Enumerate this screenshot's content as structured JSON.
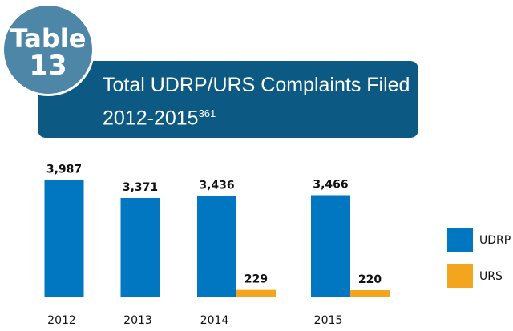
{
  "chart_data": {
    "type": "bar",
    "badge_label": "Table",
    "badge_number": 13,
    "title": "Total UDRP/URS Complaints Filed 2012-2015",
    "title_footnote": "361",
    "categories": [
      "2012",
      "2013",
      "2014",
      "2015"
    ],
    "series": [
      {
        "name": "UDRP",
        "color": "#0077c0",
        "values": [
          3987,
          3371,
          3436,
          3466
        ],
        "value_labels": [
          "3,987",
          "3,371",
          "3,436",
          "3,466"
        ]
      },
      {
        "name": "URS",
        "color": "#f3a51e",
        "values": [
          null,
          null,
          229,
          220
        ],
        "value_labels": [
          null,
          null,
          "229",
          "220"
        ]
      }
    ],
    "ylim": [
      0,
      4000
    ],
    "legend": "right"
  }
}
